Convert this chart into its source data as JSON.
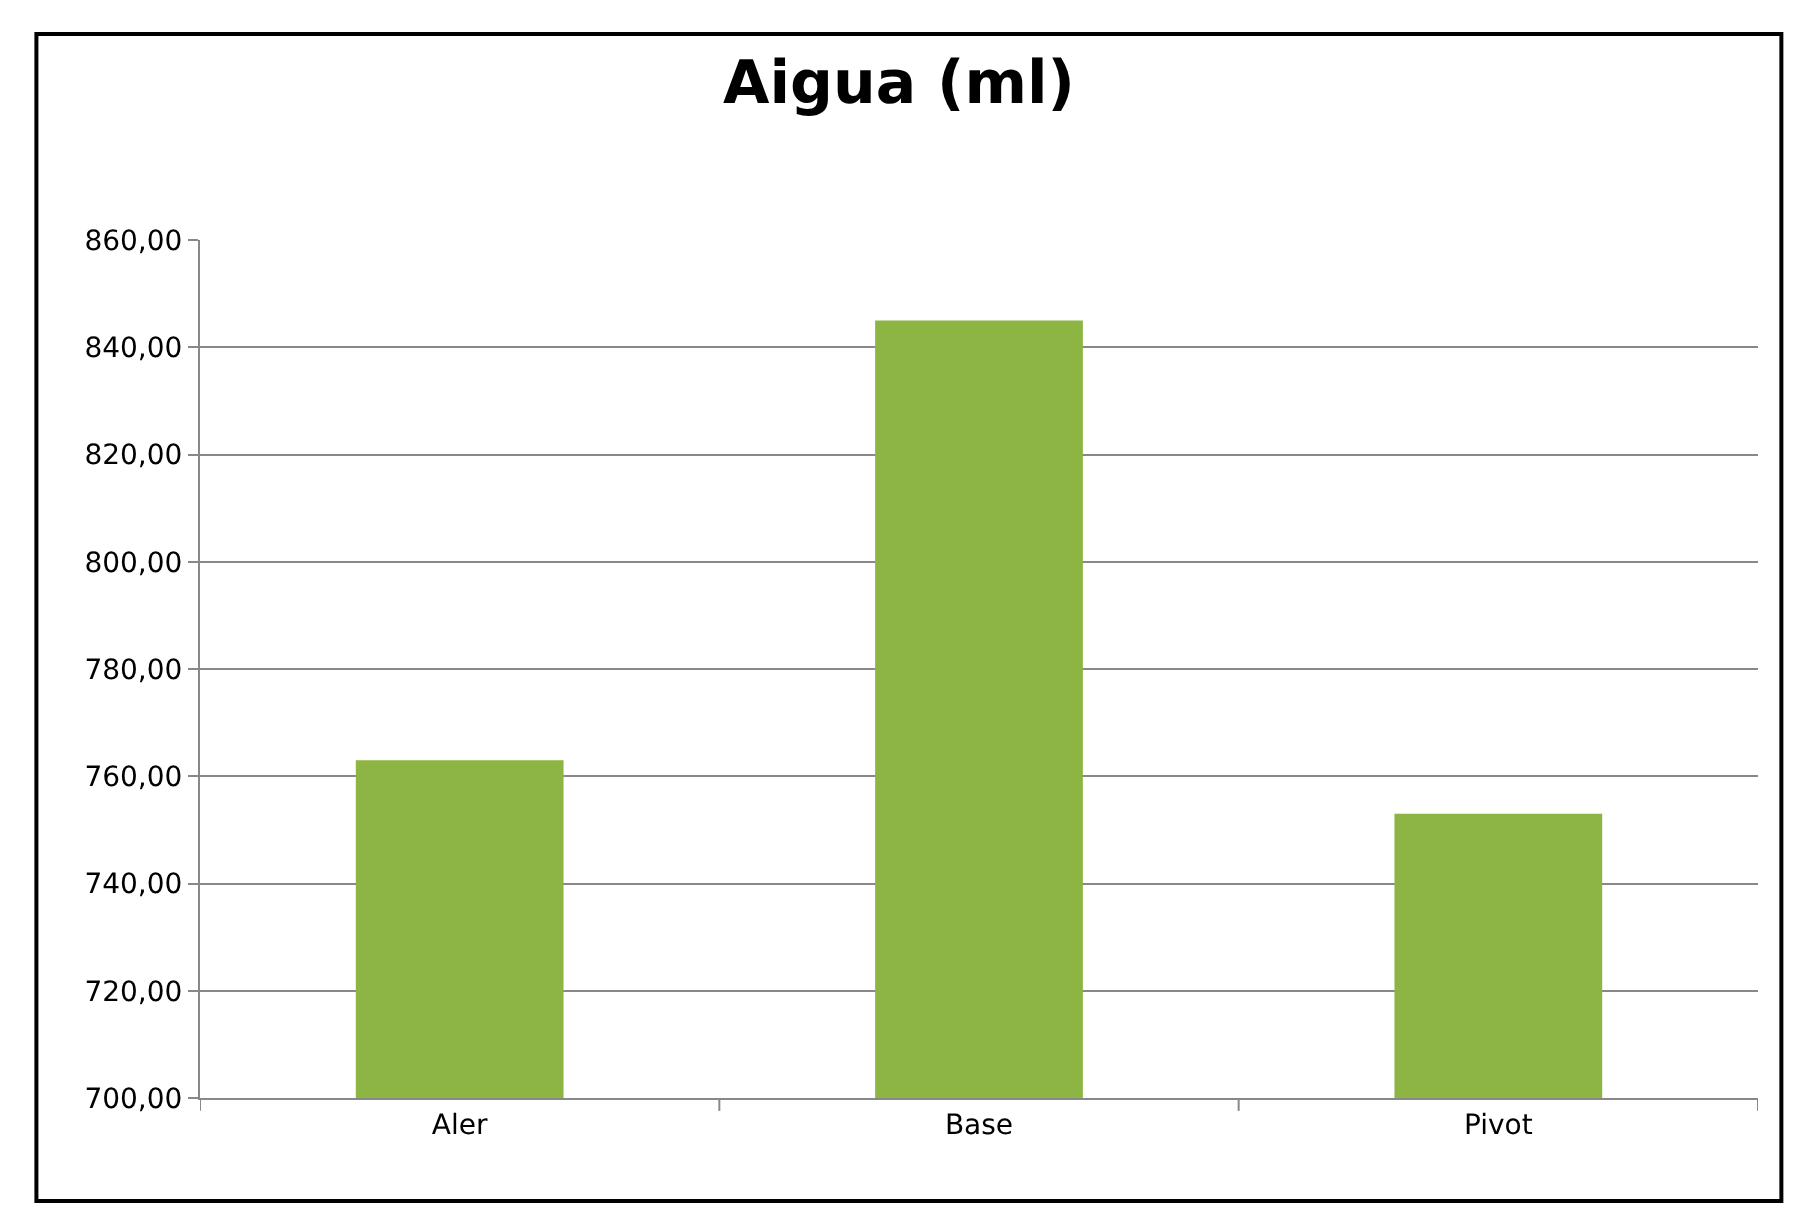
{
  "chart_data": {
    "type": "bar",
    "title": "Aigua (ml)",
    "categories": [
      "Aler",
      "Base",
      "Pivot"
    ],
    "values": [
      763,
      845,
      753
    ],
    "color": "#8cb543",
    "ylim": [
      700,
      860
    ],
    "yticks": [
      {
        "value": 700,
        "label": "700,00"
      },
      {
        "value": 720,
        "label": "720,00"
      },
      {
        "value": 740,
        "label": "740,00"
      },
      {
        "value": 760,
        "label": "760,00"
      },
      {
        "value": 780,
        "label": "780,00"
      },
      {
        "value": 800,
        "label": "800,00"
      },
      {
        "value": 820,
        "label": "820,00"
      },
      {
        "value": 840,
        "label": "840,00"
      },
      {
        "value": 860,
        "label": "860,00"
      }
    ],
    "grid": "y",
    "legend": false
  }
}
